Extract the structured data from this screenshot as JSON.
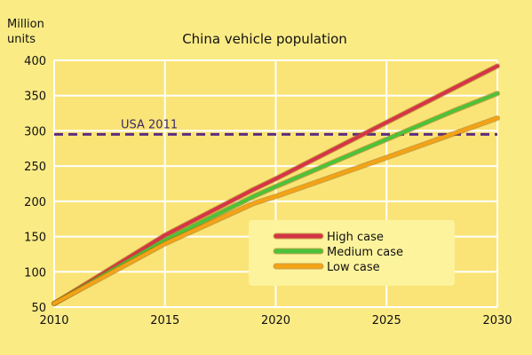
{
  "chart_data": {
    "type": "line",
    "title": "China vehicle population",
    "ylabel_lines": [
      "Million",
      "units"
    ],
    "xlabel": "",
    "xlim": [
      2010,
      2030
    ],
    "ylim": [
      50,
      400
    ],
    "x_ticks": [
      "2010",
      "2015",
      "2020",
      "2025",
      "2030"
    ],
    "y_ticks": [
      "50",
      "100",
      "150",
      "200",
      "250",
      "300",
      "350",
      "400"
    ],
    "grid": true,
    "legend_position": "bottom-right",
    "colors": {
      "background": "#fbeb85",
      "plot_area": "#fae477",
      "gridline": "#ffffff",
      "legend_box": "#fdf39c",
      "reference_line": "#5a2d82"
    },
    "reference_line": {
      "label": "USA 2011",
      "y": 295
    },
    "series": [
      {
        "name": "High case",
        "color": "#d63447",
        "x": [
          2010,
          2015,
          2019,
          2020,
          2025,
          2030
        ],
        "y": [
          55,
          152,
          217,
          232,
          312,
          392
        ]
      },
      {
        "name": "Medium case",
        "color": "#4cc23a",
        "x": [
          2010,
          2015,
          2019,
          2020,
          2025,
          2028,
          2030
        ],
        "y": [
          55,
          145,
          207,
          221,
          288,
          328,
          353
        ]
      },
      {
        "name": "Low case",
        "color": "#f4a216",
        "x": [
          2010,
          2015,
          2019,
          2020,
          2025,
          2030
        ],
        "y": [
          55,
          140,
          197,
          207,
          262,
          318
        ]
      }
    ]
  }
}
